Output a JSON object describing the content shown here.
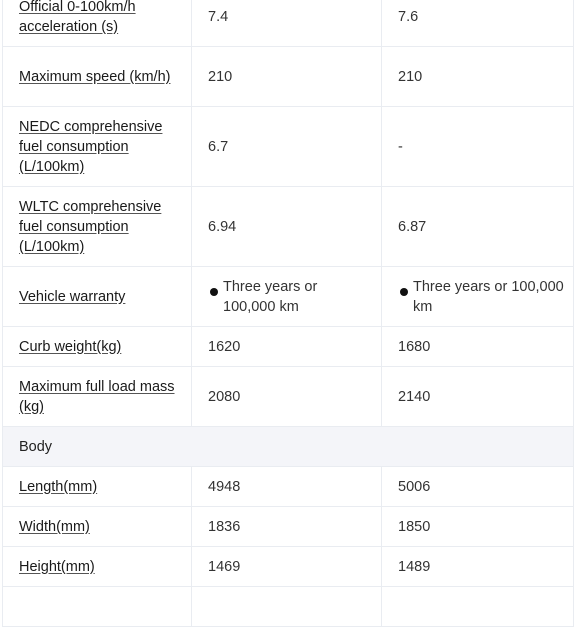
{
  "rows": [
    {
      "type": "spec",
      "label": "Official 0-100km/h acceleration (s)",
      "v1": "7.4",
      "v2": "7.6"
    },
    {
      "type": "spec",
      "label": "Maximum speed (km/h)",
      "v1": "210",
      "v2": "210"
    },
    {
      "type": "spec",
      "label": "NEDC comprehensive fuel consumption (L/100km)",
      "v1": "6.7",
      "v2": "-"
    },
    {
      "type": "spec",
      "label": "WLTC comprehensive fuel consumption (L/100km)",
      "v1": "6.94",
      "v2": "6.87"
    },
    {
      "type": "bullet",
      "label": "Vehicle warranty",
      "v1": "Three years or 100,000 km",
      "v2": "Three years or 100,000 km"
    },
    {
      "type": "spec",
      "label": "Curb weight(kg)",
      "v1": "1620",
      "v2": "1680"
    },
    {
      "type": "spec",
      "label": "Maximum full load mass (kg)",
      "v1": "2080",
      "v2": "2140"
    },
    {
      "type": "section",
      "label": "Body"
    },
    {
      "type": "spec",
      "label": "Length(mm)",
      "v1": "4948",
      "v2": "5006"
    },
    {
      "type": "spec",
      "label": "Width(mm)",
      "v1": "1836",
      "v2": "1850"
    },
    {
      "type": "spec",
      "label": "Height(mm)",
      "v1": "1469",
      "v2": "1489"
    },
    {
      "type": "spec",
      "label": "",
      "v1": "",
      "v2": ""
    }
  ]
}
